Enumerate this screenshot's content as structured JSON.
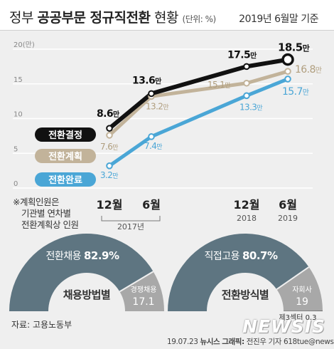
{
  "header": {
    "title_plain": "정부",
    "title_bold": "공공부문 정규직전환",
    "title_tail": "현황",
    "unit": "(단위: %)",
    "as_of": "2019년 6월말 기준"
  },
  "chart_data": {
    "type": "line",
    "title": "정부 공공부문 정규직전환 현황",
    "categories": [
      "12월",
      "6월",
      "12월",
      "6월"
    ],
    "year_labels": [
      "2017년",
      "2018",
      "2019"
    ],
    "y_ticks": [
      "20(만)",
      "15",
      "10",
      "5",
      "0"
    ],
    "ylim": [
      0,
      20
    ],
    "series": [
      {
        "name": "전환결정",
        "values": [
          8.6,
          13.6,
          17.5,
          18.5
        ],
        "labels": [
          "8.6만",
          "13.6만",
          "17.5만",
          "18.5만"
        ],
        "color": "#111111"
      },
      {
        "name": "전환계획",
        "values": [
          7.6,
          13.2,
          15.1,
          16.8
        ],
        "labels": [
          "7.6만",
          "13.2만",
          "15.1만",
          "16.8만"
        ],
        "color": "#c2b39a"
      },
      {
        "name": "전환완료",
        "values": [
          3.2,
          7.4,
          13.3,
          15.7
        ],
        "labels": [
          "3.2만",
          "7.4만",
          "13.3만",
          "15.7만"
        ],
        "color": "#4aa6d6"
      }
    ],
    "gauges": [
      {
        "main_label": "전환채용",
        "main_value": "82.9%",
        "main": 82.9,
        "title": "채용방법별",
        "other_label": "경쟁채용",
        "other_value": "17.1",
        "other": 17.1
      },
      {
        "main_label": "직접고용",
        "main_value": "80.7%",
        "main": 80.7,
        "title": "전환방식별",
        "other_label": "자회사",
        "other_value": "19",
        "other": 19,
        "third_label": "제3섹터",
        "third_value": "0.3",
        "third": 0.3
      }
    ]
  },
  "note_lines": [
    "※계획인원은",
    "기관별 연차별",
    "전환계획상 인원"
  ],
  "source": "자료: 고용노동부",
  "credit": {
    "date": "19.07.23",
    "agency": "뉴시스",
    "role": "그래픽:",
    "rest": "전진우 기자 618tue@newsis.com"
  },
  "logo": "NEWSIS",
  "colors": {
    "background": "#efefef",
    "gauge_main": "#5e7581",
    "gauge_other": "#a8a8a8",
    "gauge_third": "#707070"
  }
}
